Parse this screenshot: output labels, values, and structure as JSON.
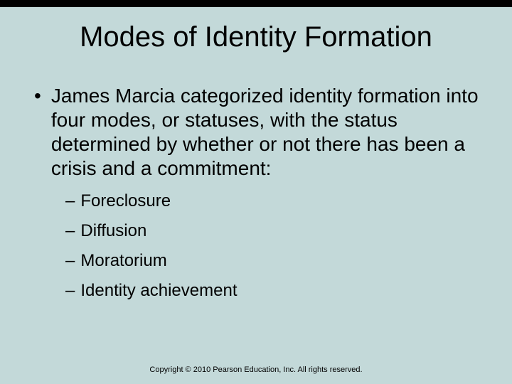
{
  "slide": {
    "background_color": "#c3d9d9",
    "text_color": "#000000",
    "font_family": "Arial",
    "title_shadow_color": "#000000"
  },
  "title": {
    "text": "Modes of Identity Formation",
    "fontsize": 40
  },
  "body": {
    "bullet_char": "•",
    "bullet_fontsize": 28,
    "main_text": "James Marcia categorized identity formation into four modes, or statuses, with the status determined by whether or not there has been a crisis and a commitment:",
    "sub_dash": "–",
    "sub_fontsize": 24,
    "sub_items": [
      "Foreclosure",
      "Diffusion",
      "Moratorium",
      "Identity achievement"
    ]
  },
  "footer": {
    "text": "Copyright © 2010 Pearson Education, Inc. All rights reserved.",
    "fontsize": 11
  }
}
